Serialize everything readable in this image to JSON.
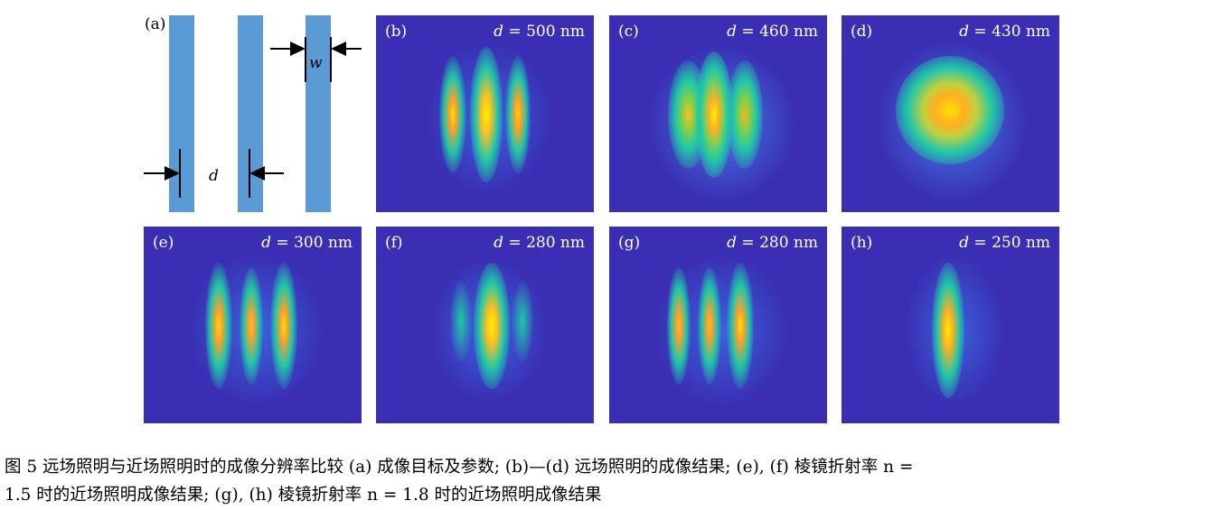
{
  "panel_a": {
    "label": "(a)",
    "w_label": "w",
    "d_label": "d",
    "bar_color": "#5b9bd5"
  },
  "panels": [
    {
      "id": "b",
      "label": "(b)",
      "d_text": "d",
      "eq_text": " = 500 nm"
    },
    {
      "id": "c",
      "label": "(c)",
      "d_text": "d",
      "eq_text": " = 460 nm"
    },
    {
      "id": "d",
      "label": "(d)",
      "d_text": "d",
      "eq_text": " = 430 nm"
    },
    {
      "id": "e",
      "label": "(e)",
      "d_text": "d",
      "eq_text": " = 300 nm"
    },
    {
      "id": "f",
      "label": "(f)",
      "d_text": "d",
      "eq_text": " = 280 nm"
    },
    {
      "id": "g",
      "label": "(g)",
      "d_text": "d",
      "eq_text": " = 280 nm"
    },
    {
      "id": "h",
      "label": "(h)",
      "d_text": "d",
      "eq_text": " = 250 nm"
    }
  ],
  "caption": {
    "line1": "图 5   远场照明与近场照明时的成像分辨率比较   (a) 成像目标及参数; (b)—(d) 远场照明的成像结果; (e), (f) 棱镜折射率 n =",
    "line2": "1.5 时的近场照明成像结果; (g), (h) 棱镜折射率 n = 1.8 时的近场照明成像结果"
  },
  "colors": {
    "background_field": "#3a2fb4",
    "peak": "#ffe600",
    "mid": "#21c7a8",
    "low": "#4a6ee0"
  }
}
